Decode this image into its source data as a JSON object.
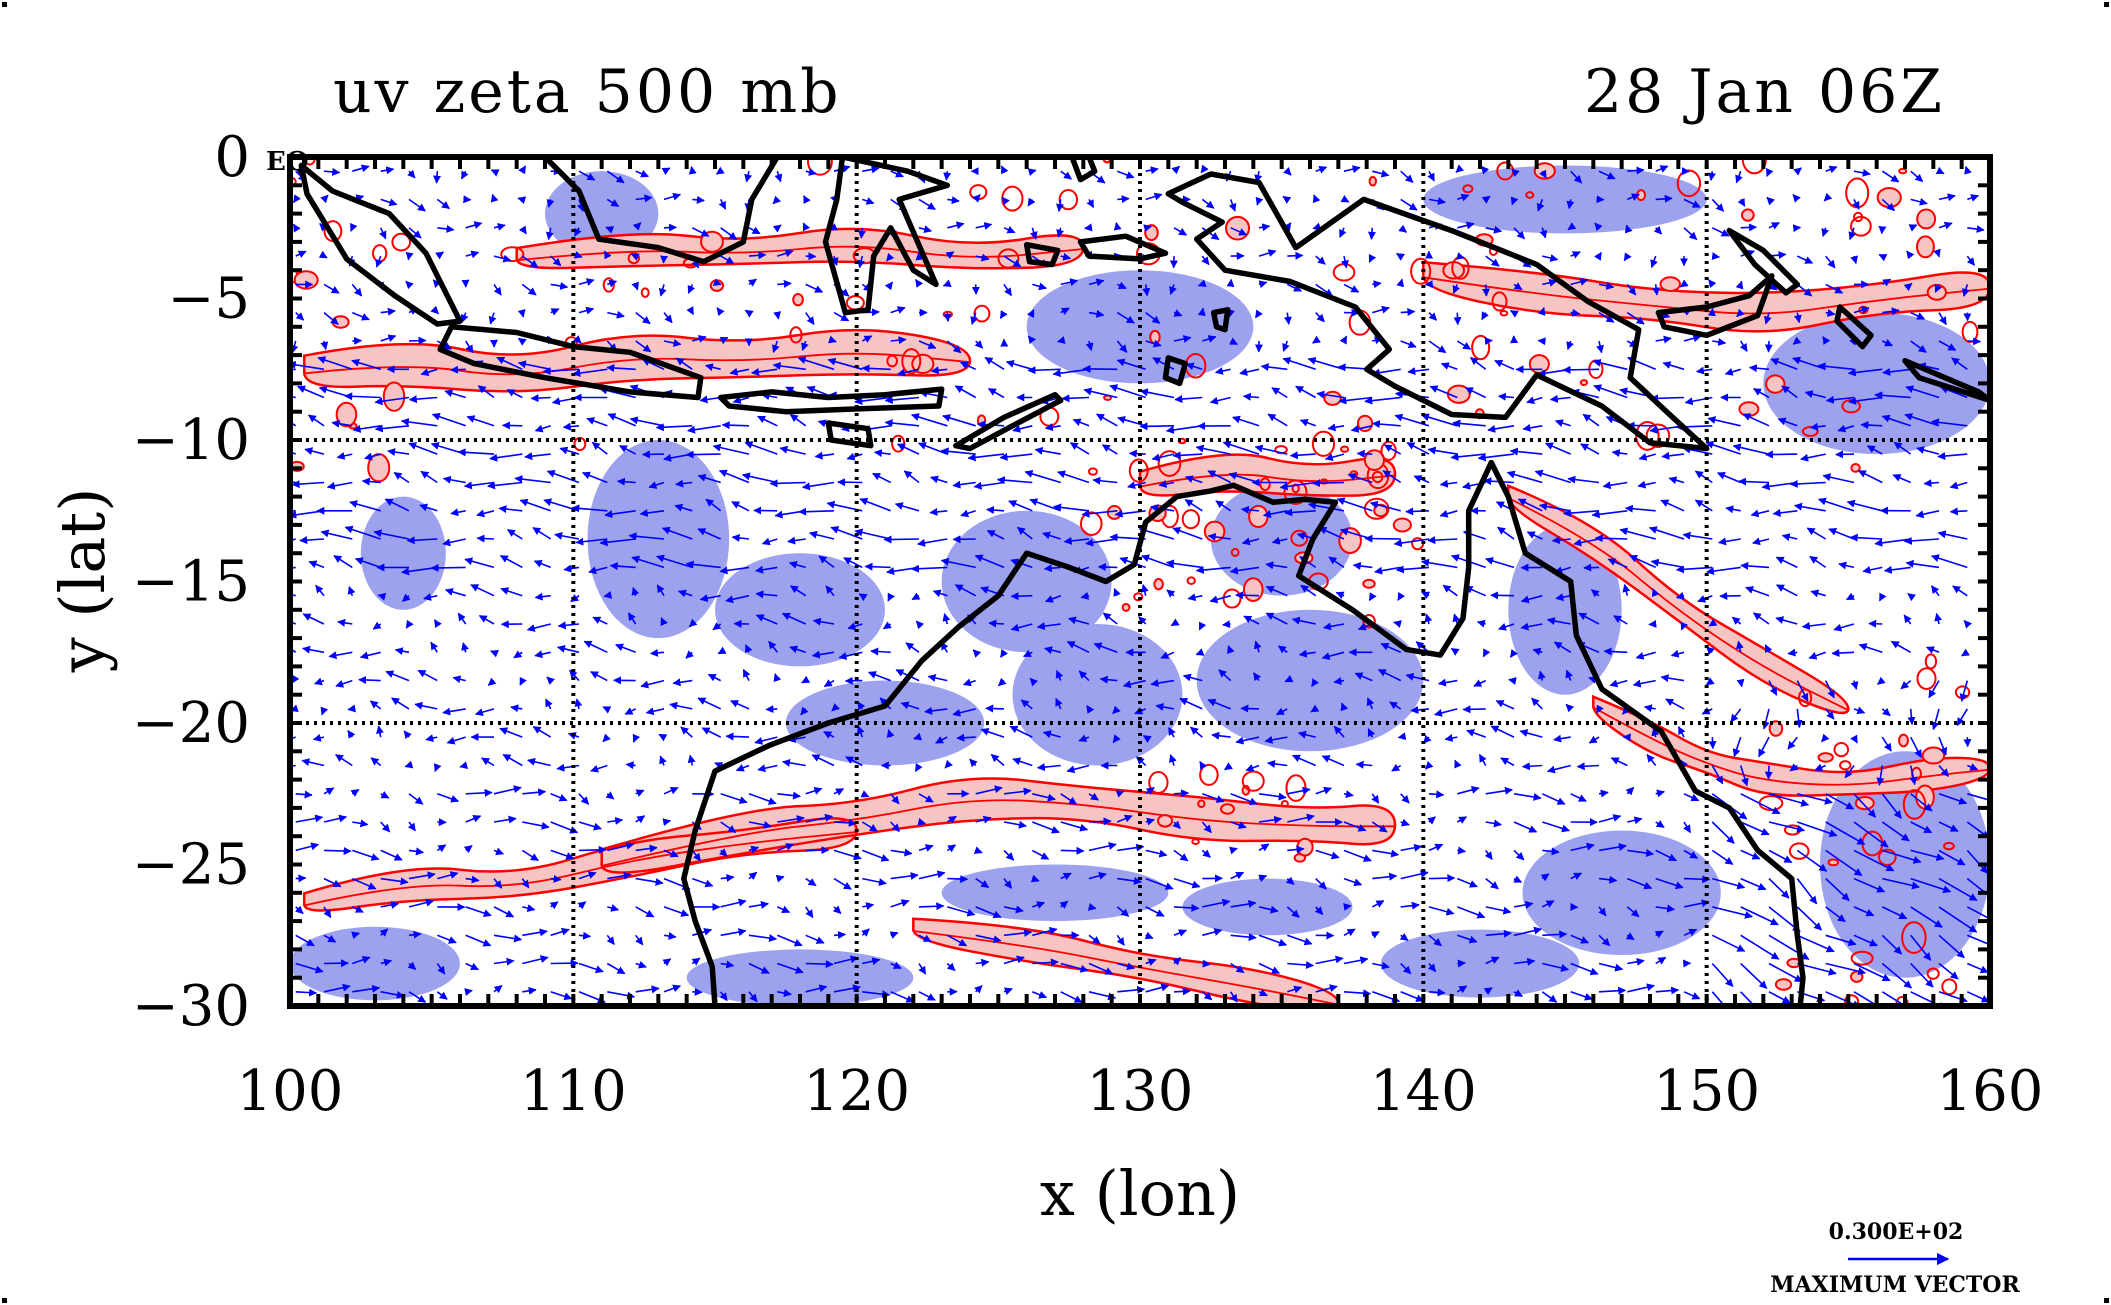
{
  "header": {
    "title_left": "uv zeta 500 mb",
    "title_right": "28 Jan 06Z"
  },
  "chart_data": {
    "type": "map",
    "projection": "lat-lon",
    "xlabel": "x (lon)",
    "ylabel": "y (lat)",
    "xlim": [
      100,
      160
    ],
    "ylim": [
      -30,
      0
    ],
    "xticks": [
      100,
      110,
      120,
      130,
      140,
      150,
      160
    ],
    "yticks": [
      0,
      -5,
      -10,
      -15,
      -20,
      -25,
      -30
    ],
    "xtick_labels": [
      "100",
      "110",
      "120",
      "130",
      "140",
      "150",
      "160"
    ],
    "ytick_labels": [
      "0",
      "−5",
      "−10",
      "−15",
      "−20",
      "−25",
      "−30"
    ],
    "grid_lon": [
      110,
      120,
      130,
      140,
      150
    ],
    "grid_lat": [
      -10,
      -20
    ],
    "equator_label": "EQ",
    "colors": {
      "positive_fill": "#f7c4c4",
      "positive_contour": "#ff0000",
      "negative_fill": "#9da2ee",
      "wind_vectors": "#0000ff",
      "coastline": "#000000"
    },
    "vector_legend": {
      "value": "0.300E+02",
      "label": "MAXIMUM VECTOR"
    },
    "positive_bands": [
      {
        "lon": [
          100.5,
          104,
          108,
          112,
          116,
          120,
          124
        ],
        "lat": [
          -7.6,
          -7.2,
          -7.8,
          -7.0,
          -7.2,
          -6.8,
          -7.2
        ],
        "width_deg": 1.4
      },
      {
        "lon": [
          108,
          112,
          116,
          120,
          124,
          128
        ],
        "lat": [
          -3.6,
          -3.2,
          -3.4,
          -3.0,
          -3.6,
          -3.2
        ],
        "width_deg": 1.0
      },
      {
        "lon": [
          140,
          144,
          148,
          152,
          156,
          160
        ],
        "lat": [
          -4.2,
          -4.8,
          -5.2,
          -5.6,
          -5.0,
          -4.6
        ],
        "width_deg": 1.2
      },
      {
        "lon": [
          100.5,
          104,
          108,
          112,
          116,
          120
        ],
        "lat": [
          -26.4,
          -25.6,
          -25.8,
          -24.8,
          -24.2,
          -23.8
        ],
        "width_deg": 1.0
      },
      {
        "lon": [
          111,
          116,
          120,
          124,
          128,
          132,
          136,
          139
        ],
        "lat": [
          -25.0,
          -23.8,
          -23.4,
          -22.6,
          -22.8,
          -23.4,
          -23.6,
          -23.6
        ],
        "width_deg": 1.3
      },
      {
        "lon": [
          122,
          126,
          130,
          134,
          137
        ],
        "lat": [
          -27.3,
          -27.8,
          -28.6,
          -29.3,
          -29.9
        ],
        "width_deg": 1.0
      },
      {
        "lon": [
          146,
          148,
          150,
          152,
          155,
          158,
          160
        ],
        "lat": [
          -19.4,
          -20.5,
          -21.4,
          -22.0,
          -22.2,
          -21.8,
          -21.6
        ],
        "width_deg": 0.9
      },
      {
        "lon": [
          130,
          133,
          136,
          139
        ],
        "lat": [
          -11.6,
          -11.0,
          -11.5,
          -11.2
        ],
        "width_deg": 1.2
      },
      {
        "lon": [
          143,
          146,
          149,
          152,
          155
        ],
        "lat": [
          -12.0,
          -13.5,
          -16.0,
          -18.0,
          -19.5
        ],
        "width_deg": 1.0
      }
    ],
    "negative_regions": [
      {
        "lon": 104.0,
        "lat": -14.0,
        "rx": 1.5,
        "ry": 2.0
      },
      {
        "lon": 113.0,
        "lat": -13.5,
        "rx": 2.5,
        "ry": 3.5
      },
      {
        "lon": 118.0,
        "lat": -16.0,
        "rx": 3.0,
        "ry": 2.0
      },
      {
        "lon": 121.0,
        "lat": -20.0,
        "rx": 3.5,
        "ry": 1.5
      },
      {
        "lon": 126.0,
        "lat": -15.0,
        "rx": 3.0,
        "ry": 2.5
      },
      {
        "lon": 128.5,
        "lat": -19.0,
        "rx": 3.0,
        "ry": 2.5
      },
      {
        "lon": 136.0,
        "lat": -18.5,
        "rx": 4.0,
        "ry": 2.5
      },
      {
        "lon": 145.0,
        "lat": -16.0,
        "rx": 2.0,
        "ry": 3.0
      },
      {
        "lon": 147.0,
        "lat": -26.0,
        "rx": 3.5,
        "ry": 2.2
      },
      {
        "lon": 157.0,
        "lat": -25.0,
        "rx": 3.0,
        "ry": 4.0
      },
      {
        "lon": 130.0,
        "lat": -6.0,
        "rx": 4.0,
        "ry": 2.0
      },
      {
        "lon": 145.0,
        "lat": -1.5,
        "rx": 5.0,
        "ry": 1.2
      },
      {
        "lon": 156.0,
        "lat": -8.0,
        "rx": 4.0,
        "ry": 2.5
      },
      {
        "lon": 103.0,
        "lat": -28.5,
        "rx": 3.0,
        "ry": 1.3
      },
      {
        "lon": 118.0,
        "lat": -29.0,
        "rx": 4.0,
        "ry": 1.0
      },
      {
        "lon": 127.0,
        "lat": -26.0,
        "rx": 4.0,
        "ry": 1.0
      },
      {
        "lon": 134.5,
        "lat": -26.5,
        "rx": 3.0,
        "ry": 1.0
      },
      {
        "lon": 142.0,
        "lat": -28.5,
        "rx": 3.5,
        "ry": 1.2
      },
      {
        "lon": 135.0,
        "lat": -13.5,
        "rx": 2.5,
        "ry": 2.0
      },
      {
        "lon": 111.0,
        "lat": -2.0,
        "rx": 2.0,
        "ry": 1.5
      }
    ],
    "coastlines": [
      {
        "name": "australia",
        "closed": false,
        "points": [
          [
            115.0,
            -30.0
          ],
          [
            114.9,
            -28.6
          ],
          [
            114.3,
            -27.0
          ],
          [
            113.9,
            -25.5
          ],
          [
            114.3,
            -23.8
          ],
          [
            115.0,
            -21.7
          ],
          [
            116.9,
            -20.8
          ],
          [
            119.0,
            -20.0
          ],
          [
            121.0,
            -19.4
          ],
          [
            122.3,
            -17.8
          ],
          [
            123.6,
            -16.6
          ],
          [
            125.0,
            -15.5
          ],
          [
            126.0,
            -14.0
          ],
          [
            127.5,
            -14.5
          ],
          [
            128.8,
            -15.0
          ],
          [
            129.8,
            -14.4
          ],
          [
            130.2,
            -12.9
          ],
          [
            131.3,
            -12.0
          ],
          [
            132.5,
            -11.8
          ],
          [
            133.3,
            -11.6
          ],
          [
            134.7,
            -12.2
          ],
          [
            135.8,
            -12.1
          ],
          [
            136.9,
            -12.2
          ],
          [
            136.1,
            -13.5
          ],
          [
            135.6,
            -14.8
          ],
          [
            137.5,
            -16.0
          ],
          [
            139.4,
            -17.4
          ],
          [
            140.6,
            -17.6
          ],
          [
            141.4,
            -16.3
          ],
          [
            141.6,
            -14.5
          ],
          [
            141.6,
            -12.5
          ],
          [
            142.4,
            -10.8
          ],
          [
            143.0,
            -12.0
          ],
          [
            143.6,
            -14.0
          ],
          [
            145.2,
            -15.0
          ],
          [
            145.4,
            -16.9
          ],
          [
            146.3,
            -18.8
          ],
          [
            148.4,
            -20.3
          ],
          [
            149.6,
            -22.4
          ],
          [
            150.8,
            -23.0
          ],
          [
            151.8,
            -24.5
          ],
          [
            153.0,
            -25.5
          ],
          [
            153.2,
            -27.5
          ],
          [
            153.4,
            -29.0
          ],
          [
            153.3,
            -30.0
          ]
        ]
      },
      {
        "name": "sumatra",
        "closed": true,
        "points": [
          [
            100.4,
            -0.3
          ],
          [
            101.5,
            -1.2
          ],
          [
            103.5,
            -2.0
          ],
          [
            104.8,
            -3.4
          ],
          [
            106.0,
            -5.8
          ],
          [
            105.2,
            -5.9
          ],
          [
            103.7,
            -4.9
          ],
          [
            102.0,
            -3.6
          ],
          [
            100.6,
            -1.3
          ]
        ]
      },
      {
        "name": "java",
        "closed": true,
        "points": [
          [
            105.7,
            -6.0
          ],
          [
            108.0,
            -6.2
          ],
          [
            110.0,
            -6.7
          ],
          [
            112.0,
            -6.9
          ],
          [
            114.5,
            -7.8
          ],
          [
            114.4,
            -8.5
          ],
          [
            112.0,
            -8.3
          ],
          [
            109.0,
            -7.8
          ],
          [
            106.5,
            -7.3
          ],
          [
            105.3,
            -6.8
          ]
        ]
      },
      {
        "name": "borneo",
        "closed": true,
        "points": [
          [
            109.0,
            0.0
          ],
          [
            110.2,
            -1.2
          ],
          [
            110.9,
            -2.9
          ],
          [
            113.0,
            -3.2
          ],
          [
            114.6,
            -3.7
          ],
          [
            116.0,
            -3.0
          ],
          [
            116.3,
            -1.5
          ],
          [
            117.2,
            0.0
          ]
        ]
      },
      {
        "name": "sulawesi",
        "closed": true,
        "points": [
          [
            119.5,
            0.0
          ],
          [
            119.3,
            -1.5
          ],
          [
            118.9,
            -3.0
          ],
          [
            119.6,
            -5.5
          ],
          [
            120.4,
            -5.4
          ],
          [
            120.6,
            -3.5
          ],
          [
            121.2,
            -2.5
          ],
          [
            122.0,
            -4.0
          ],
          [
            122.8,
            -4.5
          ],
          [
            121.5,
            -1.5
          ],
          [
            123.2,
            -1.0
          ],
          [
            121.8,
            -0.5
          ]
        ]
      },
      {
        "name": "halmahera",
        "closed": true,
        "points": [
          [
            127.6,
            0.0
          ],
          [
            127.9,
            -0.8
          ],
          [
            128.4,
            -0.5
          ],
          [
            128.2,
            0.0
          ]
        ]
      },
      {
        "name": "lesser_sunda",
        "closed": true,
        "points": [
          [
            115.2,
            -8.5
          ],
          [
            117.0,
            -8.3
          ],
          [
            119.0,
            -8.5
          ],
          [
            121.0,
            -8.4
          ],
          [
            123.0,
            -8.2
          ],
          [
            122.9,
            -8.8
          ],
          [
            120.0,
            -8.9
          ],
          [
            117.5,
            -9.0
          ],
          [
            115.5,
            -8.8
          ]
        ]
      },
      {
        "name": "sumba",
        "closed": true,
        "points": [
          [
            119.0,
            -9.4
          ],
          [
            120.4,
            -9.6
          ],
          [
            120.5,
            -10.2
          ],
          [
            119.1,
            -10.0
          ]
        ]
      },
      {
        "name": "timor",
        "closed": true,
        "points": [
          [
            123.5,
            -10.2
          ],
          [
            125.2,
            -9.2
          ],
          [
            127.0,
            -8.4
          ],
          [
            127.2,
            -8.6
          ],
          [
            125.5,
            -9.5
          ],
          [
            124.0,
            -10.3
          ]
        ]
      },
      {
        "name": "seram",
        "closed": true,
        "points": [
          [
            127.9,
            -3.0
          ],
          [
            129.5,
            -2.8
          ],
          [
            130.9,
            -3.4
          ],
          [
            130.0,
            -3.6
          ],
          [
            128.2,
            -3.5
          ]
        ]
      },
      {
        "name": "buru",
        "closed": true,
        "points": [
          [
            126.0,
            -3.1
          ],
          [
            127.1,
            -3.3
          ],
          [
            126.9,
            -3.8
          ],
          [
            126.1,
            -3.7
          ]
        ]
      },
      {
        "name": "tanimbar",
        "closed": true,
        "points": [
          [
            131.0,
            -7.1
          ],
          [
            131.6,
            -7.3
          ],
          [
            131.4,
            -8.0
          ],
          [
            130.9,
            -7.8
          ]
        ]
      },
      {
        "name": "kai",
        "closed": true,
        "points": [
          [
            132.6,
            -5.5
          ],
          [
            133.1,
            -5.4
          ],
          [
            133.0,
            -6.1
          ],
          [
            132.7,
            -6.0
          ]
        ]
      },
      {
        "name": "new_guinea",
        "closed": true,
        "points": [
          [
            131.0,
            -1.3
          ],
          [
            132.5,
            -0.6
          ],
          [
            134.2,
            -0.9
          ],
          [
            135.5,
            -3.2
          ],
          [
            137.9,
            -1.5
          ],
          [
            141.0,
            -2.6
          ],
          [
            144.0,
            -3.8
          ],
          [
            145.8,
            -5.1
          ],
          [
            147.6,
            -6.1
          ],
          [
            147.3,
            -7.8
          ],
          [
            148.8,
            -9.2
          ],
          [
            150.0,
            -10.3
          ],
          [
            148.0,
            -10.1
          ],
          [
            146.3,
            -8.8
          ],
          [
            144.0,
            -7.7
          ],
          [
            142.9,
            -9.2
          ],
          [
            141.0,
            -9.1
          ],
          [
            139.0,
            -8.1
          ],
          [
            138.0,
            -7.5
          ],
          [
            138.8,
            -6.8
          ],
          [
            137.6,
            -5.3
          ],
          [
            135.3,
            -4.4
          ],
          [
            133.0,
            -4.0
          ],
          [
            132.0,
            -2.9
          ],
          [
            132.9,
            -2.3
          ],
          [
            131.5,
            -1.6
          ]
        ]
      },
      {
        "name": "new_britain",
        "closed": true,
        "points": [
          [
            148.3,
            -5.5
          ],
          [
            150.0,
            -5.3
          ],
          [
            151.5,
            -4.9
          ],
          [
            152.3,
            -4.2
          ],
          [
            151.8,
            -5.6
          ],
          [
            150.0,
            -6.3
          ],
          [
            148.5,
            -6.0
          ]
        ]
      },
      {
        "name": "new_ireland",
        "closed": true,
        "points": [
          [
            150.8,
            -2.6
          ],
          [
            152.0,
            -3.3
          ],
          [
            153.2,
            -4.5
          ],
          [
            152.8,
            -4.8
          ],
          [
            151.7,
            -3.8
          ]
        ]
      },
      {
        "name": "bougainville",
        "closed": true,
        "points": [
          [
            154.7,
            -5.3
          ],
          [
            155.8,
            -6.3
          ],
          [
            155.5,
            -6.7
          ],
          [
            154.6,
            -5.8
          ]
        ]
      },
      {
        "name": "solomons",
        "closed": true,
        "points": [
          [
            157.0,
            -7.2
          ],
          [
            159.6,
            -8.3
          ],
          [
            160.0,
            -8.6
          ],
          [
            157.5,
            -7.8
          ]
        ]
      }
    ],
    "wind_vector_regions": [
      {
        "lat_range": [
          -7,
          0
        ],
        "u": 1.5,
        "v": -0.8,
        "mag": 7
      },
      {
        "lat_range": [
          -15,
          -7
        ],
        "u": -6.0,
        "v": 0.8,
        "mag": 8
      },
      {
        "lat_range": [
          -22,
          -15
        ],
        "u": -3.0,
        "v": 0.6,
        "mag": 6
      },
      {
        "lat_range": [
          -30,
          -22
        ],
        "u": 4.0,
        "v": -0.5,
        "mag": 8
      }
    ]
  }
}
